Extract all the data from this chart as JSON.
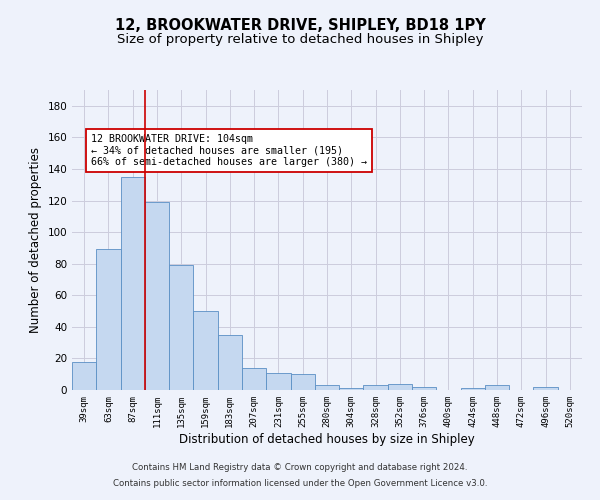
{
  "title": "12, BROOKWATER DRIVE, SHIPLEY, BD18 1PY",
  "subtitle": "Size of property relative to detached houses in Shipley",
  "xlabel": "Distribution of detached houses by size in Shipley",
  "ylabel": "Number of detached properties",
  "categories": [
    "39sqm",
    "63sqm",
    "87sqm",
    "111sqm",
    "135sqm",
    "159sqm",
    "183sqm",
    "207sqm",
    "231sqm",
    "255sqm",
    "280sqm",
    "304sqm",
    "328sqm",
    "352sqm",
    "376sqm",
    "400sqm",
    "424sqm",
    "448sqm",
    "472sqm",
    "496sqm",
    "520sqm"
  ],
  "values": [
    18,
    89,
    135,
    119,
    79,
    50,
    35,
    14,
    11,
    10,
    3,
    1,
    3,
    4,
    2,
    0,
    1,
    3,
    0,
    2,
    0
  ],
  "bar_color": "#c5d8f0",
  "bar_edge_color": "#5a8fc4",
  "vline_x": 2.5,
  "vline_color": "#cc0000",
  "annotation_text": "12 BROOKWATER DRIVE: 104sqm\n← 34% of detached houses are smaller (195)\n66% of semi-detached houses are larger (380) →",
  "annotation_box_color": "#ffffff",
  "annotation_box_edge_color": "#cc0000",
  "ylim": [
    0,
    190
  ],
  "yticks": [
    0,
    20,
    40,
    60,
    80,
    100,
    120,
    140,
    160,
    180
  ],
  "grid_color": "#ccccdd",
  "background_color": "#eef2fb",
  "footer_line1": "Contains HM Land Registry data © Crown copyright and database right 2024.",
  "footer_line2": "Contains public sector information licensed under the Open Government Licence v3.0.",
  "title_fontsize": 10.5,
  "subtitle_fontsize": 9.5,
  "xlabel_fontsize": 8.5,
  "ylabel_fontsize": 8.5
}
